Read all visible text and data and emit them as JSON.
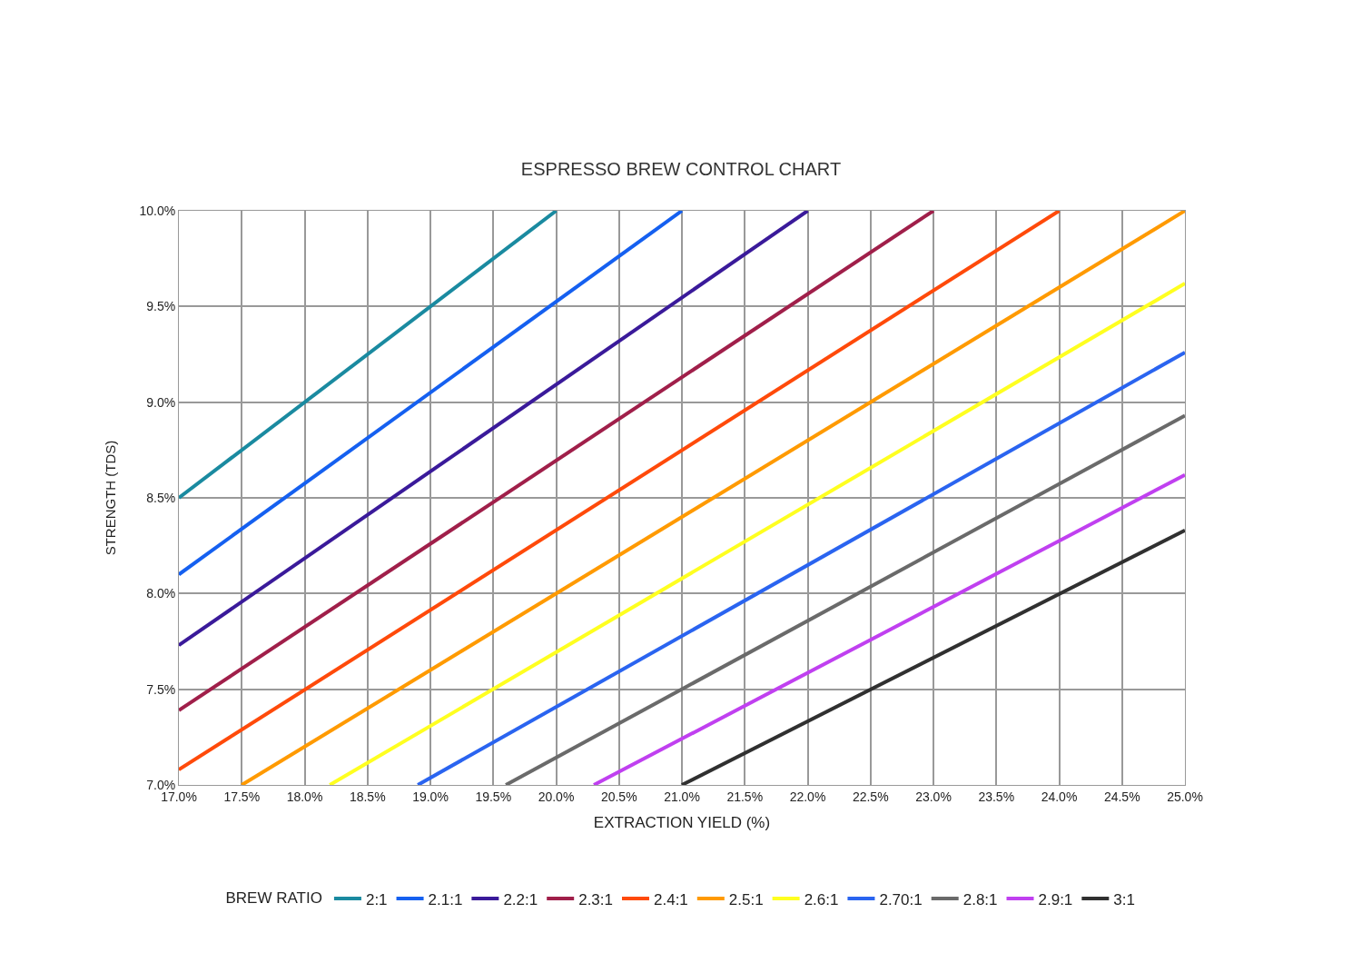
{
  "chart_data": {
    "type": "line",
    "title": "ESPRESSO BREW CONTROL CHART",
    "xlabel": "EXTRACTION YIELD (%)",
    "ylabel": "STRENGTH (TDS)",
    "legend_title": "BREW RATIO",
    "xlim": [
      17,
      25
    ],
    "ylim": [
      7,
      10
    ],
    "xticks": [
      {
        "value": 17,
        "label": "17.0%"
      },
      {
        "value": 17.5,
        "label": "17.5%"
      },
      {
        "value": 18,
        "label": "18.0%"
      },
      {
        "value": 18.5,
        "label": "18.5%"
      },
      {
        "value": 19,
        "label": "19.0%"
      },
      {
        "value": 19.5,
        "label": "19.5%"
      },
      {
        "value": 20,
        "label": "20.0%"
      },
      {
        "value": 20.5,
        "label": "20.5%"
      },
      {
        "value": 21,
        "label": "21.0%"
      },
      {
        "value": 21.5,
        "label": "21.5%"
      },
      {
        "value": 22,
        "label": "22.0%"
      },
      {
        "value": 22.5,
        "label": "22.5%"
      },
      {
        "value": 23,
        "label": "23.0%"
      },
      {
        "value": 23.5,
        "label": "23.5%"
      },
      {
        "value": 24,
        "label": "24.0%"
      },
      {
        "value": 24.5,
        "label": "24.5%"
      },
      {
        "value": 25,
        "label": "25.0%"
      }
    ],
    "yticks": [
      {
        "value": 7,
        "label": "7.0%"
      },
      {
        "value": 7.5,
        "label": "7.5%"
      },
      {
        "value": 8,
        "label": "8.0%"
      },
      {
        "value": 8.5,
        "label": "8.5%"
      },
      {
        "value": 9,
        "label": "9.0%"
      },
      {
        "value": 9.5,
        "label": "9.5%"
      },
      {
        "value": 10,
        "label": "10.0%"
      }
    ],
    "grid": true,
    "legend": "bottom",
    "marker": "none",
    "line_style": "solid",
    "series": [
      {
        "name": "2:1",
        "color": "#1a8aa0",
        "x": [
          17,
          20
        ],
        "values": [
          8.5,
          10
        ]
      },
      {
        "name": "2.1:1",
        "color": "#1560f0",
        "x": [
          17,
          21
        ],
        "values": [
          8.1,
          10
        ]
      },
      {
        "name": "2.2:1",
        "color": "#3a1a9a",
        "x": [
          17,
          22
        ],
        "values": [
          7.73,
          10
        ]
      },
      {
        "name": "2.3:1",
        "color": "#a01f4a",
        "x": [
          17,
          23
        ],
        "values": [
          7.39,
          10
        ]
      },
      {
        "name": "2.4:1",
        "color": "#ff4a0a",
        "x": [
          17,
          24
        ],
        "values": [
          7.08,
          10
        ]
      },
      {
        "name": "2.5:1",
        "color": "#ff9a00",
        "x": [
          17.5,
          25
        ],
        "values": [
          7,
          10
        ]
      },
      {
        "name": "2.6:1",
        "color": "#ffff20",
        "x": [
          18.2,
          25
        ],
        "values": [
          7,
          9.62
        ]
      },
      {
        "name": "2.70:1",
        "color": "#2a64f0",
        "x": [
          18.9,
          25
        ],
        "values": [
          7,
          9.26
        ]
      },
      {
        "name": "2.8:1",
        "color": "#6a6a6a",
        "x": [
          19.6,
          25
        ],
        "values": [
          7,
          8.93
        ]
      },
      {
        "name": "2.9:1",
        "color": "#c040f0",
        "x": [
          20.3,
          25
        ],
        "values": [
          7,
          8.62
        ]
      },
      {
        "name": "3:1",
        "color": "#303030",
        "x": [
          21,
          25
        ],
        "values": [
          7,
          8.33
        ]
      }
    ]
  }
}
